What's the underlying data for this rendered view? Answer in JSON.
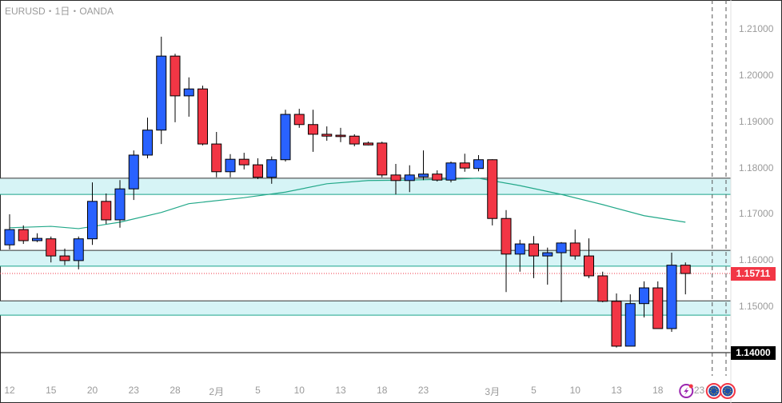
{
  "header": {
    "title": "EURUSD・1日・OANDA"
  },
  "colors": {
    "up": "#2962ff",
    "down": "#f23645",
    "zone": "#d6f4f6",
    "zone_line": "#1aa38b",
    "ma": "#22a889",
    "current_price": "#f23645",
    "level_badge": "#000000"
  },
  "price_axis": {
    "ticks": [
      "1.21000",
      "1.20000",
      "1.19000",
      "1.18000",
      "1.17000",
      "1.16000",
      "1.15000"
    ],
    "tick_values": [
      1.21,
      1.2,
      1.19,
      1.18,
      1.17,
      1.16,
      1.15
    ],
    "current_price": "1.15711",
    "current_value": 1.15711,
    "level_label": "1.14000",
    "level_value": 1.14
  },
  "time_axis": {
    "labels": [
      {
        "t": "12",
        "i": 0
      },
      {
        "t": "15",
        "i": 3
      },
      {
        "t": "20",
        "i": 6
      },
      {
        "t": "23",
        "i": 9
      },
      {
        "t": "28",
        "i": 12
      },
      {
        "t": "2月",
        "i": 15
      },
      {
        "t": "5",
        "i": 18
      },
      {
        "t": "10",
        "i": 21
      },
      {
        "t": "13",
        "i": 24
      },
      {
        "t": "18",
        "i": 27
      },
      {
        "t": "23",
        "i": 30
      },
      {
        "t": "3月",
        "i": 35
      },
      {
        "t": "5",
        "i": 38
      },
      {
        "t": "10",
        "i": 41
      },
      {
        "t": "13",
        "i": 44
      },
      {
        "t": "18",
        "i": 47
      },
      {
        "t": "23",
        "i": 50
      }
    ]
  },
  "zones": [
    [
      1.1742,
      1.1777
    ],
    [
      1.1587,
      1.1621
    ],
    [
      1.1481,
      1.1512
    ]
  ],
  "events": [
    {
      "icon": "lightning-icon",
      "i": 49
    },
    {
      "icon": "eu-flag-icon",
      "i": 51
    },
    {
      "icon": "eu-flag-icon",
      "i": 52
    }
  ],
  "chart_data": {
    "type": "candlestick",
    "symbol": "EURUSD",
    "interval": "1D",
    "ylim": [
      1.1365,
      1.2155
    ],
    "ohlc": [
      [
        1.1633,
        1.1699,
        1.1623,
        1.1666
      ],
      [
        1.1666,
        1.1675,
        1.1635,
        1.1642
      ],
      [
        1.1642,
        1.1658,
        1.1639,
        1.1647
      ],
      [
        1.1646,
        1.1651,
        1.1595,
        1.1609
      ],
      [
        1.1609,
        1.1625,
        1.1589,
        1.1599
      ],
      [
        1.1599,
        1.1651,
        1.158,
        1.1646
      ],
      [
        1.1646,
        1.1768,
        1.1633,
        1.1727
      ],
      [
        1.1727,
        1.1744,
        1.1678,
        1.1687
      ],
      [
        1.1687,
        1.1773,
        1.167,
        1.1754
      ],
      [
        1.1754,
        1.1837,
        1.173,
        1.1827
      ],
      [
        1.1827,
        1.1908,
        1.182,
        1.1881
      ],
      [
        1.1881,
        1.2083,
        1.1851,
        1.2041
      ],
      [
        1.2041,
        1.2046,
        1.1898,
        1.1955
      ],
      [
        1.1955,
        1.1995,
        1.191,
        1.197
      ],
      [
        1.197,
        1.1977,
        1.1848,
        1.1851
      ],
      [
        1.1851,
        1.1877,
        1.1779,
        1.1791
      ],
      [
        1.1791,
        1.1829,
        1.1779,
        1.1818
      ],
      [
        1.1818,
        1.1832,
        1.1796,
        1.1806
      ],
      [
        1.1806,
        1.182,
        1.1775,
        1.1779
      ],
      [
        1.1779,
        1.1824,
        1.1765,
        1.1817
      ],
      [
        1.1817,
        1.1925,
        1.1813,
        1.1915
      ],
      [
        1.1915,
        1.1927,
        1.1886,
        1.1893
      ],
      [
        1.1893,
        1.1925,
        1.1834,
        1.1872
      ],
      [
        1.1872,
        1.1889,
        1.1858,
        1.1868
      ],
      [
        1.187,
        1.1886,
        1.1855,
        1.1867
      ],
      [
        1.1868,
        1.1872,
        1.1846,
        1.1851
      ],
      [
        1.1853,
        1.1856,
        1.1848,
        1.1849
      ],
      [
        1.1853,
        1.1856,
        1.1779,
        1.1784
      ],
      [
        1.1784,
        1.1808,
        1.1742,
        1.1772
      ],
      [
        1.1772,
        1.1805,
        1.1747,
        1.1784
      ],
      [
        1.178,
        1.1837,
        1.1773,
        1.1786
      ],
      [
        1.1786,
        1.1794,
        1.177,
        1.1773
      ],
      [
        1.1773,
        1.1813,
        1.1768,
        1.181
      ],
      [
        1.181,
        1.183,
        1.1791,
        1.1799
      ],
      [
        1.1798,
        1.1827,
        1.1792,
        1.1817
      ],
      [
        1.1817,
        1.1818,
        1.1675,
        1.169
      ],
      [
        1.169,
        1.1708,
        1.1531,
        1.1613
      ],
      [
        1.1613,
        1.1644,
        1.1575,
        1.1635
      ],
      [
        1.1635,
        1.1652,
        1.1561,
        1.1609
      ],
      [
        1.1609,
        1.1627,
        1.1547,
        1.1616
      ],
      [
        1.1616,
        1.1639,
        1.1509,
        1.1637
      ],
      [
        1.1637,
        1.1666,
        1.1601,
        1.1609
      ],
      [
        1.1609,
        1.1647,
        1.1561,
        1.1566
      ],
      [
        1.1566,
        1.1575,
        1.1509,
        1.1511
      ],
      [
        1.1511,
        1.1528,
        1.1411,
        1.1414
      ],
      [
        1.1414,
        1.1526,
        1.1414,
        1.1506
      ],
      [
        1.1506,
        1.1554,
        1.1476,
        1.154
      ],
      [
        1.154,
        1.1554,
        1.1452,
        1.1452
      ],
      [
        1.1452,
        1.1616,
        1.1445,
        1.1589
      ],
      [
        1.1589,
        1.1595,
        1.1526,
        1.1571
      ]
    ],
    "moving_average": [
      [
        0,
        1.167
      ],
      [
        3,
        1.1673
      ],
      [
        5,
        1.1668
      ],
      [
        8,
        1.1682
      ],
      [
        11,
        1.1703
      ],
      [
        13,
        1.1722
      ],
      [
        17,
        1.1735
      ],
      [
        20,
        1.1747
      ],
      [
        23,
        1.1765
      ],
      [
        26,
        1.1772
      ],
      [
        29,
        1.1773
      ],
      [
        32,
        1.1775
      ],
      [
        34,
        1.1777
      ],
      [
        37,
        1.1761
      ],
      [
        40,
        1.1742
      ],
      [
        43,
        1.172
      ],
      [
        46,
        1.1696
      ],
      [
        49,
        1.1682
      ]
    ]
  }
}
